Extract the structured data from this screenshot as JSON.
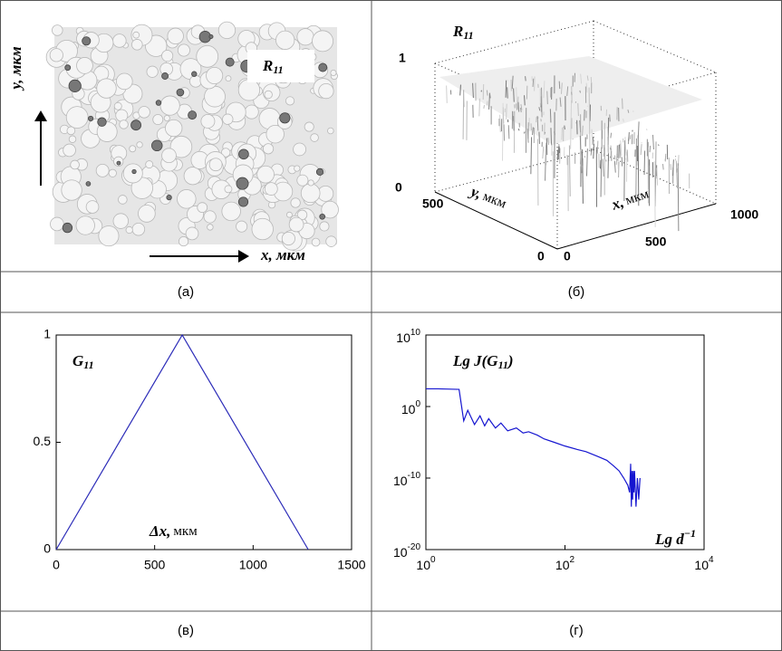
{
  "panel_a": {
    "label": "R",
    "label_sub": "11",
    "y_axis": "y, мкм",
    "x_axis": "x, мкм"
  },
  "panel_b": {
    "label": "R",
    "label_sub": "11",
    "zticks": [
      0,
      1
    ],
    "yticks": [
      0,
      500
    ],
    "xticks": [
      0,
      500,
      1000
    ],
    "y_axis_var": "y,",
    "y_axis_unit": "мкм",
    "x_axis_var": "x,",
    "x_axis_unit": "мкм"
  },
  "captions": [
    "(а)",
    "(б)",
    "(в)",
    "(г)"
  ],
  "chart_data": [
    {
      "type": "line",
      "label": "G",
      "label_sub": "11",
      "x_label_var": "Δx,",
      "x_label_unit": "мкм",
      "x": [
        0,
        640,
        1280
      ],
      "values": [
        0,
        1,
        0
      ],
      "color": "#2b2bb8",
      "xlim": [
        0,
        1500
      ],
      "ylim": [
        0,
        1
      ],
      "xticks": [
        0,
        500,
        1000,
        1500
      ],
      "yticks": [
        0,
        0.5,
        1
      ]
    },
    {
      "type": "line",
      "log_scale": true,
      "label": "Lg J(G",
      "label_sub": "11",
      "label_end": ")",
      "x_label": "Lg d",
      "x_label_exp": "−1",
      "x": [
        1,
        1.5,
        2,
        3,
        3.5,
        4,
        5,
        6,
        7,
        8,
        10,
        12,
        15,
        20,
        25,
        30,
        40,
        50,
        70,
        100,
        150,
        200,
        300,
        400,
        500,
        600,
        700,
        800,
        850,
        880,
        900,
        920,
        940,
        960,
        980,
        1000,
        1050,
        1100,
        1150,
        1200
      ],
      "values": [
        300,
        300,
        280,
        250,
        0.01,
        0.3,
        0.003,
        0.05,
        0.002,
        0.02,
        0.001,
        0.005,
        0.0004,
        0.001,
        0.0002,
        0.0003,
        0.0001,
        3e-05,
        1e-05,
        3e-06,
        1e-06,
        5e-07,
        1e-07,
        3e-08,
        5e-09,
        1e-09,
        1e-10,
        1e-11,
        1e-12,
        1e-08,
        1e-14,
        1e-09,
        1e-13,
        1e-09,
        1e-12,
        1e-09,
        1e-14,
        1e-10,
        1e-13,
        1e-10
      ],
      "color": "#1515d0",
      "xlim": [
        1,
        10000
      ],
      "ylim": [
        1e-20,
        10000000000.0
      ],
      "xticks": [
        {
          "value": 1,
          "label": "10",
          "exponent": "0"
        },
        {
          "value": 100,
          "label": "10",
          "exponent": "2"
        },
        {
          "value": 10000,
          "label": "10",
          "exponent": "4"
        }
      ],
      "yticks": [
        {
          "value": 1e-20,
          "label": "10",
          "exponent": "-20"
        },
        {
          "value": 1e-10,
          "label": "10",
          "exponent": "-10"
        },
        {
          "value": 1,
          "label": "10",
          "exponent": "0"
        },
        {
          "value": 10000000000.0,
          "label": "10",
          "exponent": "10"
        }
      ]
    }
  ]
}
